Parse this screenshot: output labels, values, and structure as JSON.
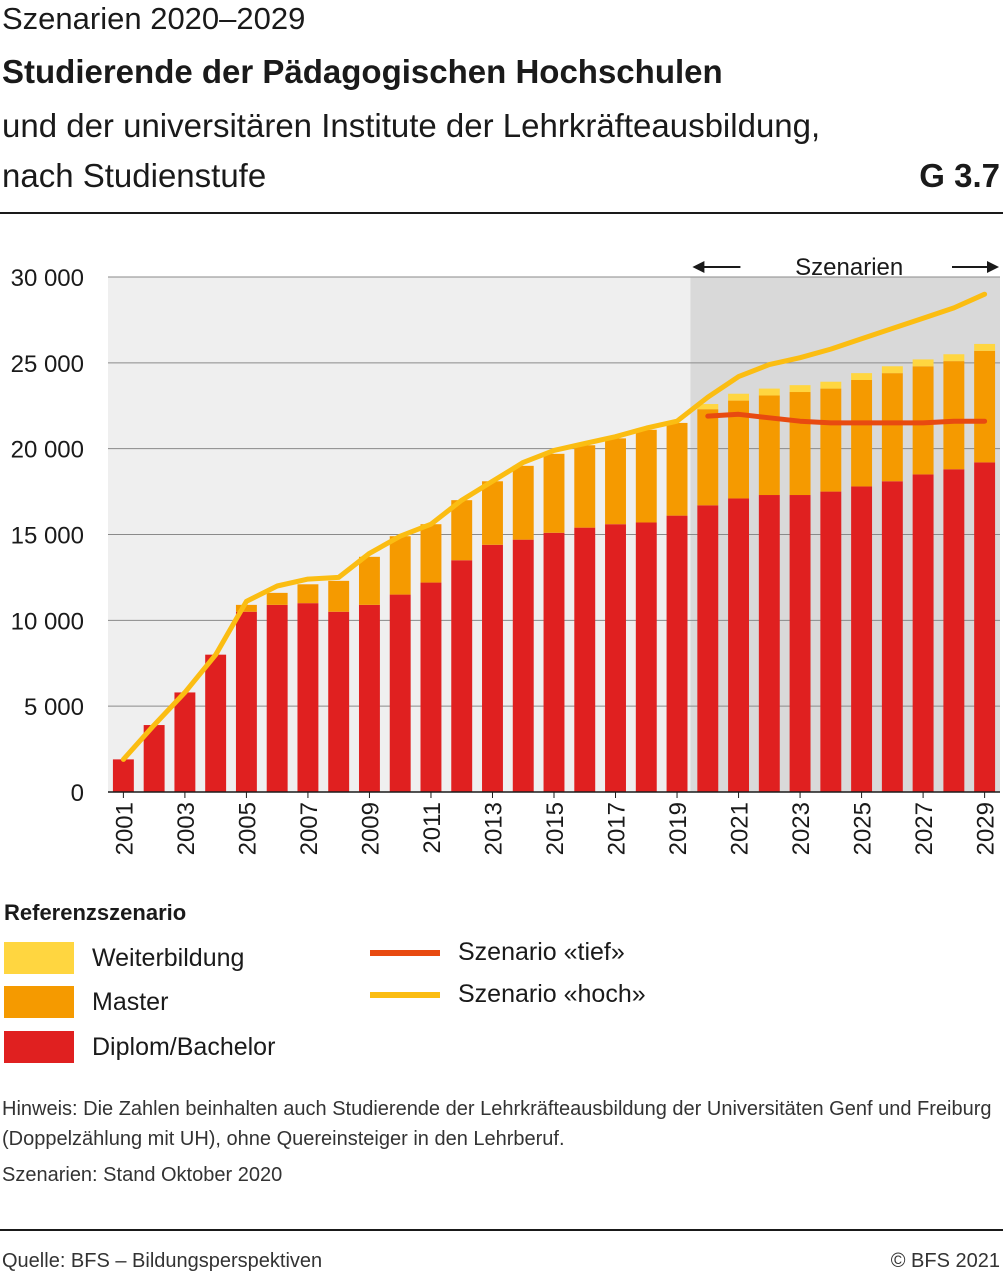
{
  "header": {
    "line1": "Szenarien 2020–2029",
    "title": "Studierende der Pädagogischen Hochschulen",
    "subtitle1": "und der universitären Institute der Lehrkräfteausbildung,",
    "subtitle2": "nach Studienstufe",
    "code": "G 3.7"
  },
  "legend": {
    "title": "Referenzszenario",
    "items": [
      {
        "label": "Weiterbildung",
        "color": "#ffd640"
      },
      {
        "label": "Master",
        "color": "#f59a00"
      },
      {
        "label": "Diplom/Bachelor",
        "color": "#e02020"
      }
    ],
    "lines": [
      {
        "label": "Szenario «tief»",
        "color": "#e84a10"
      },
      {
        "label": "Szenario «hoch»",
        "color": "#fbbd12"
      }
    ]
  },
  "notes": {
    "hinweis": "Hinweis: Die Zahlen beinhalten auch Studierende der Lehrkräfteausbildung der Universitäten Genf und Freiburg (Doppelzählung mit UH), ohne Quereinsteiger in den Lehrberuf.",
    "stand": "Szenarien: Stand Oktober 2020"
  },
  "footer": {
    "source": "Quelle: BFS – Bildungsperspektiven",
    "copyright": "© BFS 2021"
  },
  "chart_data": {
    "type": "bar",
    "stacked": true,
    "scenario_label": "Szenarien",
    "scenario_start_year": 2020,
    "ylim": [
      0,
      30000
    ],
    "yticks": [
      0,
      5000,
      10000,
      15000,
      20000,
      25000,
      30000
    ],
    "ytick_labels": [
      "0",
      "5 000",
      "10 000",
      "15 000",
      "20 000",
      "25 000",
      "30 000"
    ],
    "categories": [
      2001,
      2002,
      2003,
      2004,
      2005,
      2006,
      2007,
      2008,
      2009,
      2010,
      2011,
      2012,
      2013,
      2014,
      2015,
      2016,
      2017,
      2018,
      2019,
      2020,
      2021,
      2022,
      2023,
      2024,
      2025,
      2026,
      2027,
      2028,
      2029
    ],
    "xtick_labels": [
      "2001",
      "2003",
      "2005",
      "2007",
      "2009",
      "2011",
      "2013",
      "2015",
      "2017",
      "2019",
      "2021",
      "2023",
      "2025",
      "2027",
      "2029"
    ],
    "series": [
      {
        "name": "Diplom/Bachelor",
        "color": "#e02020",
        "values": [
          1900,
          3900,
          5800,
          8000,
          10500,
          10900,
          11000,
          10500,
          10900,
          11500,
          12200,
          13500,
          14400,
          14700,
          15100,
          15400,
          15600,
          15700,
          16100,
          16700,
          17100,
          17300,
          17300,
          17500,
          17800,
          18100,
          18500,
          18800,
          19200
        ]
      },
      {
        "name": "Master",
        "color": "#f59a00",
        "values": [
          0,
          0,
          0,
          0,
          400,
          700,
          1100,
          1800,
          2800,
          3400,
          3400,
          3500,
          3700,
          4300,
          4600,
          4800,
          5000,
          5400,
          5400,
          5600,
          5700,
          5800,
          6000,
          6000,
          6200,
          6300,
          6300,
          6300,
          6500
        ]
      },
      {
        "name": "Weiterbildung",
        "color": "#ffd640",
        "values": [
          0,
          0,
          0,
          0,
          0,
          0,
          0,
          0,
          0,
          0,
          0,
          0,
          0,
          0,
          0,
          0,
          0,
          0,
          0,
          300,
          400,
          400,
          400,
          400,
          400,
          400,
          400,
          400,
          400
        ]
      }
    ],
    "lines": [
      {
        "name": "Szenario «hoch»",
        "color": "#fbbd12",
        "x": [
          2001,
          2002,
          2003,
          2004,
          2005,
          2006,
          2007,
          2008,
          2009,
          2010,
          2011,
          2012,
          2013,
          2014,
          2015,
          2016,
          2017,
          2018,
          2019,
          2020,
          2021,
          2022,
          2023,
          2024,
          2025,
          2026,
          2027,
          2028,
          2029
        ],
        "y": [
          1900,
          3900,
          5800,
          8000,
          11100,
          12000,
          12400,
          12500,
          13900,
          14900,
          15600,
          17000,
          18100,
          19200,
          19900,
          20300,
          20700,
          21200,
          21600,
          23000,
          24200,
          24900,
          25300,
          25800,
          26400,
          27000,
          27600,
          28200,
          29000
        ]
      },
      {
        "name": "Szenario «tief»",
        "color": "#e84a10",
        "x": [
          2020,
          2021,
          2022,
          2023,
          2024,
          2025,
          2026,
          2027,
          2028,
          2029
        ],
        "y": [
          21900,
          22000,
          21800,
          21600,
          21500,
          21500,
          21500,
          21500,
          21600,
          21600
        ]
      }
    ]
  }
}
